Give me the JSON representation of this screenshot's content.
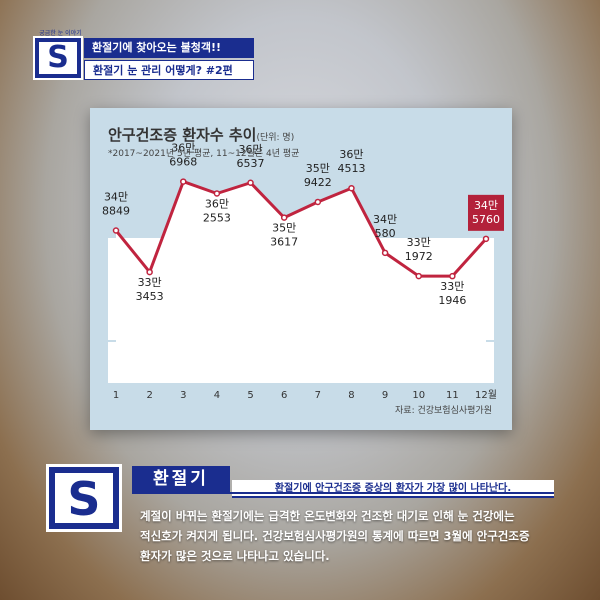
{
  "header": {
    "top_caption": "궁금한 눈 이야기",
    "s_letter": "S",
    "title_line1": "환절기에 찾아오는 불청객!!",
    "title_line2": "환절기 눈 관리 어떻게? #2편"
  },
  "chart_data": {
    "type": "line",
    "title": "안구건조증 환자수 추이",
    "unit_label": "(단위: 명)",
    "note": "*2017~2021년 5년 평균, 11~12월은 4년 평균",
    "source": "자료: 건강보험심사평가원",
    "x": [
      "1",
      "2",
      "3",
      "4",
      "5",
      "6",
      "7",
      "8",
      "9",
      "10",
      "11",
      "12월"
    ],
    "values": [
      348849,
      333453,
      366968,
      362553,
      366537,
      353617,
      359422,
      364513,
      340580,
      331972,
      331946,
      345760
    ],
    "label_top": [
      "34만",
      "33만",
      "36만",
      "36만",
      "36만",
      "35만",
      "35만",
      "36만",
      "34만",
      "33만",
      "33만",
      "34만"
    ],
    "label_bottom": [
      "8849",
      "3453",
      "6968",
      "2553",
      "6537",
      "3617",
      "9422",
      "4513",
      "580",
      "1972",
      "1946",
      "5760"
    ],
    "highlight_index": 11,
    "line_color": "#c0243f",
    "highlight_color": "#b3213a",
    "ylim": [
      322000,
      372000
    ]
  },
  "section": {
    "s_letter": "S",
    "title": "환절기",
    "subtitle": "환절기에 안구건조증 증상의 환자가 가장 많이 나타난다.",
    "body_lines": [
      "계절이 바뀌는 환절기에는 급격한 온도변화와 건조한 대기로 인해 눈 건강에는",
      "적신호가 켜지게 됩니다. 건강보험심사평가원의 통계에 따르면 3월에 안구건조증",
      "환자가 많은 것으로 나타나고 있습니다."
    ]
  }
}
